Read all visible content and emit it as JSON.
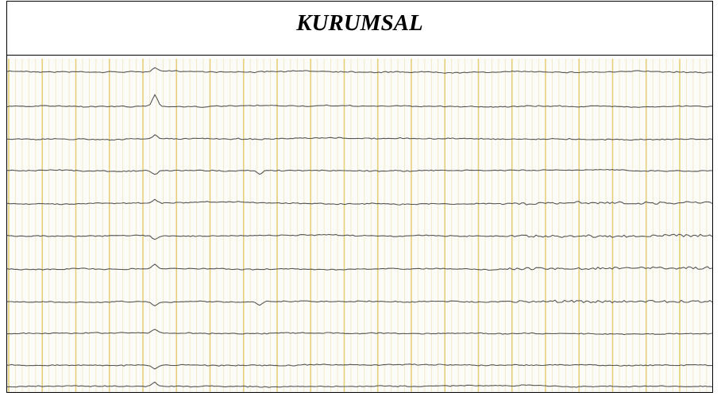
{
  "title": "KURUMSAL"
}
